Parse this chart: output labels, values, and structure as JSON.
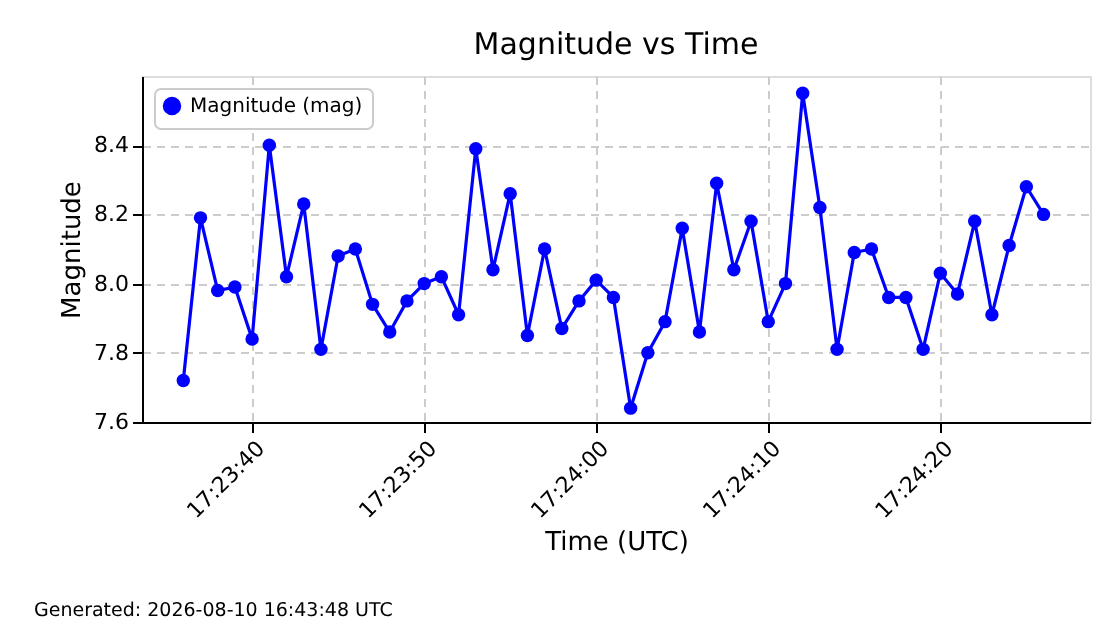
{
  "chart_data": {
    "type": "line",
    "title": "Magnitude vs Time",
    "xlabel": "Time (UTC)",
    "ylabel": "Magnitude",
    "annotations": [
      "Generated: 2026-08-10 16:43:48 UTC"
    ],
    "x": [
      "2026-08-10T17:23:36",
      "2026-08-10T17:23:37",
      "2026-08-10T17:23:38",
      "2026-08-10T17:23:39",
      "2026-08-10T17:23:40",
      "2026-08-10T17:23:41",
      "2026-08-10T17:23:42",
      "2026-08-10T17:23:43",
      "2026-08-10T17:23:44",
      "2026-08-10T17:23:45",
      "2026-08-10T17:23:46",
      "2026-08-10T17:23:47",
      "2026-08-10T17:23:48",
      "2026-08-10T17:23:49",
      "2026-08-10T17:23:50",
      "2026-08-10T17:23:51",
      "2026-08-10T17:23:52",
      "2026-08-10T17:23:53",
      "2026-08-10T17:23:54",
      "2026-08-10T17:23:55",
      "2026-08-10T17:23:56",
      "2026-08-10T17:23:57",
      "2026-08-10T17:23:58",
      "2026-08-10T17:23:59",
      "2026-08-10T17:24:00",
      "2026-08-10T17:24:01",
      "2026-08-10T17:24:02",
      "2026-08-10T17:24:03",
      "2026-08-10T17:24:04",
      "2026-08-10T17:24:05",
      "2026-08-10T17:24:06",
      "2026-08-10T17:24:07",
      "2026-08-10T17:24:08",
      "2026-08-10T17:24:09",
      "2026-08-10T17:24:10",
      "2026-08-10T17:24:11",
      "2026-08-10T17:24:12",
      "2026-08-10T17:24:13",
      "2026-08-10T17:24:14",
      "2026-08-10T17:24:15",
      "2026-08-10T17:24:16",
      "2026-08-10T17:24:17",
      "2026-08-10T17:24:18",
      "2026-08-10T17:24:19",
      "2026-08-10T17:24:20",
      "2026-08-10T17:24:21",
      "2026-08-10T17:24:22",
      "2026-08-10T17:24:23",
      "2026-08-10T17:24:24",
      "2026-08-10T17:24:25",
      "2026-08-10T17:24:26"
    ],
    "series": [
      {
        "name": "Magnitude (mag)",
        "color": "#0000ff",
        "values": [
          7.72,
          8.19,
          7.98,
          7.99,
          7.84,
          8.4,
          8.02,
          8.23,
          7.81,
          8.08,
          8.1,
          7.94,
          7.86,
          7.95,
          8.0,
          8.02,
          7.91,
          8.39,
          8.04,
          8.26,
          7.85,
          8.1,
          7.87,
          7.95,
          8.01,
          7.96,
          7.64,
          7.8,
          7.89,
          8.16,
          7.86,
          8.29,
          8.04,
          8.18,
          7.89,
          8.0,
          8.55,
          8.22,
          7.81,
          8.09,
          8.1,
          7.96,
          7.96,
          7.81,
          8.03,
          7.97,
          8.18,
          7.91,
          8.11,
          8.28,
          8.2
        ]
      }
    ],
    "xlim": [
      "2026-08-10T17:23:33.6",
      "2026-08-10T17:24:28.7"
    ],
    "xticks": [
      {
        "value": "2026-08-10T17:23:40",
        "label": "17:23:40"
      },
      {
        "value": "2026-08-10T17:23:50",
        "label": "17:23:50"
      },
      {
        "value": "2026-08-10T17:24:00",
        "label": "17:24:00"
      },
      {
        "value": "2026-08-10T17:24:10",
        "label": "17:24:10"
      },
      {
        "value": "2026-08-10T17:24:20",
        "label": "17:24:20"
      }
    ],
    "ylim": [
      7.6,
      8.6
    ],
    "yticks": [
      7.6,
      7.8,
      {
        "value": 8,
        "label": "8.0"
      },
      8.2,
      8.4
    ],
    "grid": true,
    "legend": "top left",
    "marker": "circle",
    "line_style": "solid"
  }
}
